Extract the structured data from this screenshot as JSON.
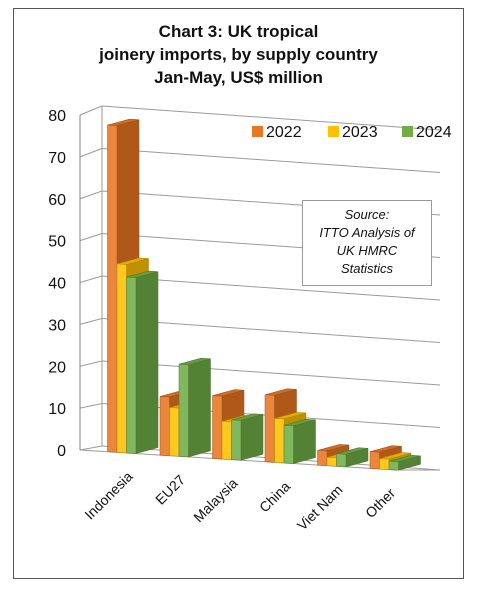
{
  "chart_data": {
    "type": "bar",
    "title_lines": [
      "Chart 3: UK tropical",
      "joinery imports, by supply country",
      "Jan-May, US$ million"
    ],
    "categories": [
      "Indonesia",
      "EU27",
      "Malaysia",
      "China",
      "Viet Nam",
      "Other"
    ],
    "series": [
      {
        "name": "2022",
        "values": [
          78,
          14,
          15,
          16,
          3.5,
          4
        ],
        "color": "#E87722"
      },
      {
        "name": "2023",
        "values": [
          45,
          11.5,
          9,
          10.5,
          2,
          2.5
        ],
        "color": "#FFC000"
      },
      {
        "name": "2024",
        "values": [
          42,
          22,
          9.5,
          9,
          3,
          2
        ],
        "color": "#70AD47"
      }
    ],
    "ylim": [
      0,
      80
    ],
    "yticks": [
      0,
      10,
      20,
      30,
      40,
      50,
      60,
      70,
      80
    ],
    "grid": true,
    "legend_position": "top-right",
    "annotation": [
      "Source:",
      "ITTO Analysis of",
      "UK HMRC",
      "Statistics"
    ]
  }
}
